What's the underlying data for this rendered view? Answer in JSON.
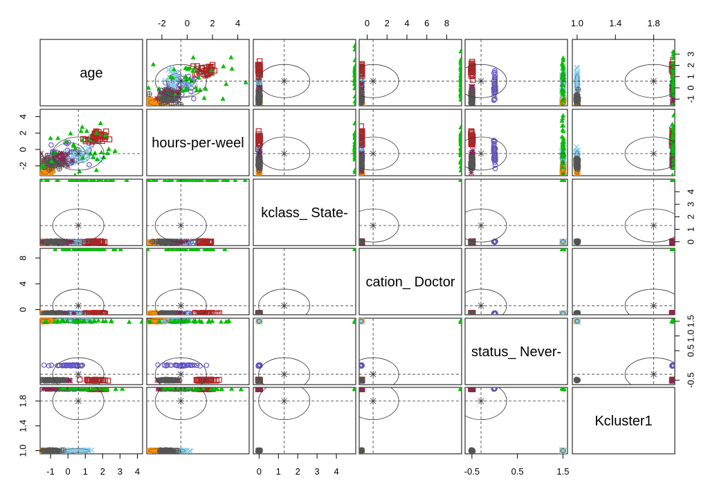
{
  "chart_data": {
    "type": "scatter",
    "title": "",
    "variables": [
      "age",
      "hours-per-week",
      "workclass_ State-gov",
      "education_ Doctorate",
      "marital-status_ Never-married",
      "Kcluster1"
    ],
    "diagonal_labels": [
      "age",
      "hours-per-weel",
      "kclass_ State-",
      "cation_ Doctor",
      "status_ Never-",
      "Kcluster1"
    ],
    "axis_ranges": [
      [
        -1.6,
        4.3
      ],
      [
        -3.2,
        4.9
      ],
      [
        -0.3,
        5.0
      ],
      [
        -0.8,
        9.5
      ],
      [
        -0.65,
        1.6
      ],
      [
        0.95,
        2.02
      ]
    ],
    "tick_values": [
      [
        -1,
        0,
        1,
        2,
        3,
        4
      ],
      [
        -2,
        0,
        2,
        4
      ],
      [
        0,
        1,
        2,
        3,
        4
      ],
      [
        0,
        2,
        4,
        6,
        8
      ],
      [
        -0.5,
        0.5,
        1.5
      ],
      [
        1.0,
        1.4,
        1.8
      ]
    ],
    "tick_labels": [
      [
        "-1",
        "0",
        "1",
        "2",
        "3",
        "4"
      ],
      [
        "-2",
        "0",
        "2",
        "4"
      ],
      [
        "0",
        "1",
        "2",
        "3",
        "4"
      ],
      [
        "0",
        "2",
        "4",
        "6",
        "8"
      ],
      [
        "-0.5",
        "0.5",
        "1.5"
      ],
      [
        "1.0",
        "1.4",
        "1.8"
      ]
    ],
    "left_tick_labels": [
      [
        "-2",
        "0",
        "2",
        "4"
      ],
      [
        "0",
        "4",
        "8"
      ],
      [
        "1.0",
        "1.4",
        "1.8"
      ]
    ],
    "right_tick_labels": [
      [
        "-1",
        "0",
        "1",
        "2",
        "3"
      ],
      [
        "0",
        "1",
        "2",
        "3",
        "4"
      ],
      [
        "-0.5",
        "0.5",
        "1.0",
        "1.5"
      ]
    ],
    "top_tick_labels": [
      [
        "-2",
        "0",
        "2",
        "4"
      ],
      [
        "0",
        "2",
        "4",
        "6",
        "8"
      ],
      [
        "1.0",
        "1.4",
        "1.8"
      ]
    ],
    "bottom_tick_labels": [
      [
        "-1",
        "0",
        "1",
        "2",
        "3",
        "4"
      ],
      [
        "0",
        "1",
        "2",
        "3",
        "4"
      ],
      [
        "-0.5",
        "0.5",
        "1.5"
      ]
    ],
    "clusters": [
      {
        "color": "#00c000",
        "symbol": "triangle",
        "center": [
          0.8,
          0.2,
          5.0,
          9.5,
          1.5,
          2.0
        ],
        "spread": [
          1.1,
          1.6,
          0,
          0,
          0,
          0
        ]
      },
      {
        "color": "#6a5acd",
        "symbol": "circle",
        "center": [
          0.1,
          -0.4,
          0,
          -0.6,
          0.0,
          2.0
        ],
        "spread": [
          0.6,
          0.8,
          0,
          0,
          0,
          0
        ]
      },
      {
        "color": "#ff8c00",
        "symbol": "square",
        "center": [
          -1.3,
          -2.3,
          0,
          -0.6,
          1.5,
          1.0
        ],
        "spread": [
          0.2,
          0.5,
          0,
          0,
          0,
          0
        ]
      },
      {
        "color": "#87ceeb",
        "symbol": "cross",
        "center": [
          0.5,
          -0.9,
          0,
          -0.6,
          1.5,
          1.0
        ],
        "spread": [
          0.5,
          0.5,
          0,
          0,
          0,
          0
        ]
      },
      {
        "color": "#b22222",
        "symbol": "open-square",
        "center": [
          1.6,
          1.4,
          0,
          -0.6,
          -0.5,
          2.0
        ],
        "spread": [
          0.3,
          0.4,
          0,
          0,
          0,
          0
        ]
      },
      {
        "color": "#8b2252",
        "symbol": "asterisk",
        "center": [
          -0.6,
          -1.3,
          0,
          -0.6,
          -0.5,
          2.0
        ],
        "spread": [
          0.4,
          0.5,
          0,
          0,
          0,
          0
        ]
      },
      {
        "color": "#555555",
        "symbol": "circle-plus",
        "center": [
          -0.9,
          -1.6,
          0,
          -0.6,
          -0.5,
          1.0
        ],
        "spread": [
          0.3,
          0.4,
          0,
          0,
          0,
          0
        ]
      }
    ],
    "overall_means": [
      0.6,
      -0.5,
      1.3,
      0.6,
      -0.3,
      1.8
    ],
    "grid": false,
    "legend": "none"
  }
}
